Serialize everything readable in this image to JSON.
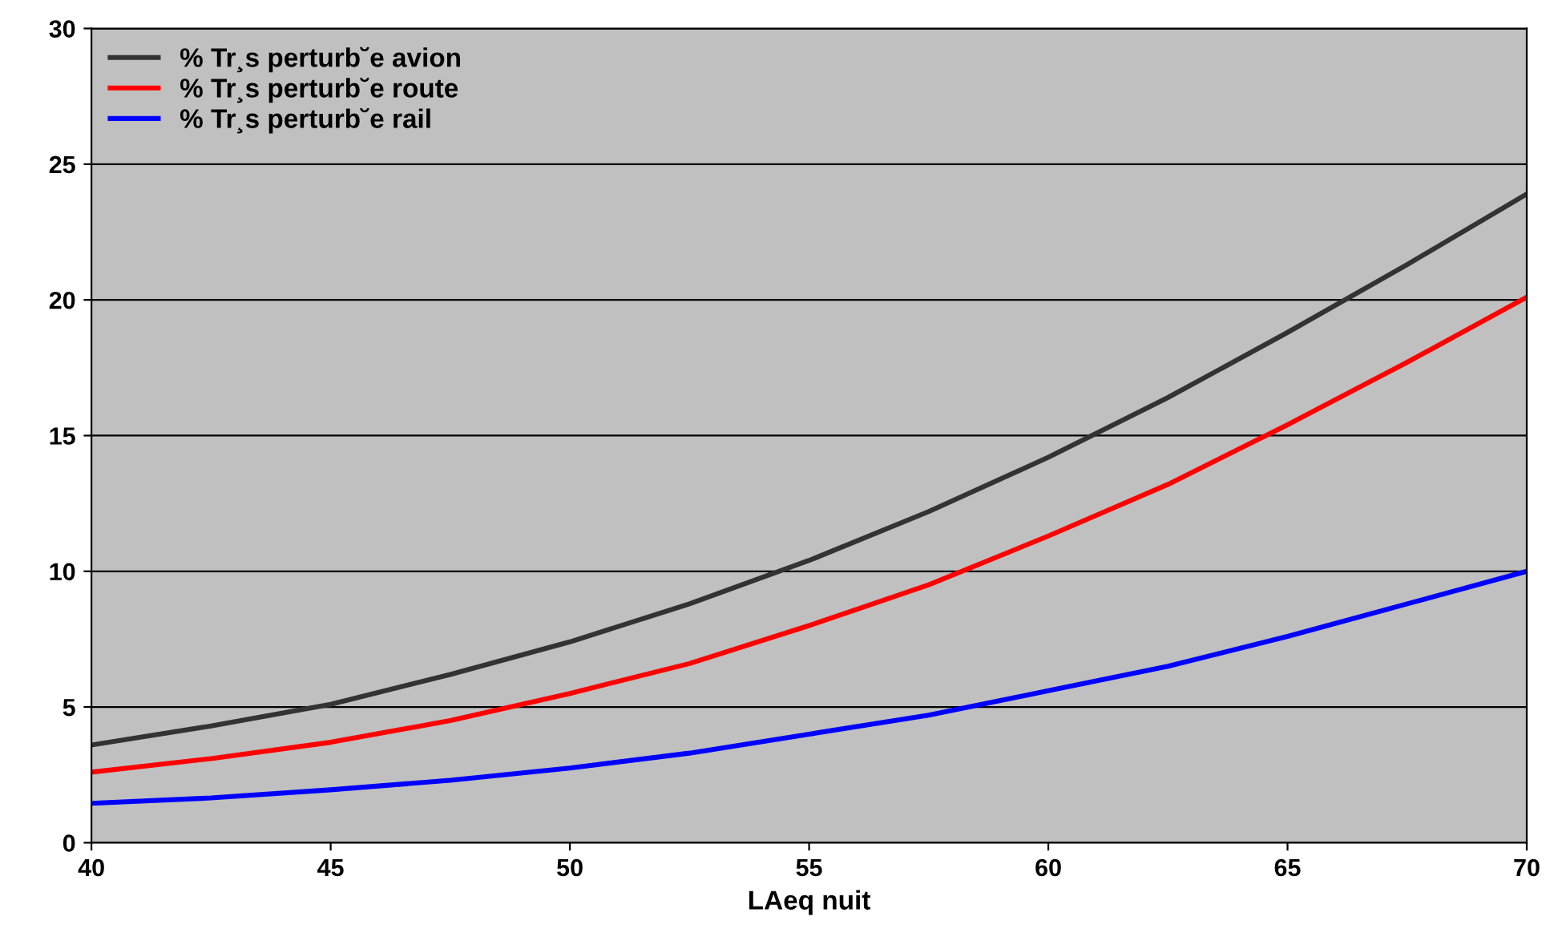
{
  "chart_data": {
    "type": "line",
    "xlabel": "LAeq nuit",
    "x": [
      40,
      42.5,
      45,
      47.5,
      50,
      52.5,
      55,
      57.5,
      60,
      62.5,
      65,
      67.5,
      70
    ],
    "series": [
      {
        "name": "% Tr¸s perturb˘e avion",
        "color": "#333333",
        "values": [
          3.6,
          4.3,
          5.1,
          6.2,
          7.4,
          8.8,
          10.4,
          12.2,
          14.2,
          16.4,
          18.8,
          21.3,
          23.9
        ]
      },
      {
        "name": "% Tr¸s perturb˘e route",
        "color": "#ff0000",
        "values": [
          2.6,
          3.1,
          3.7,
          4.5,
          5.5,
          6.6,
          8.0,
          9.5,
          11.3,
          13.2,
          15.4,
          17.7,
          20.1
        ]
      },
      {
        "name": "% Tr¸s perturb˘e rail",
        "color": "#0000ff",
        "values": [
          1.45,
          1.65,
          1.95,
          2.3,
          2.75,
          3.3,
          4.0,
          4.7,
          5.6,
          6.5,
          7.6,
          8.8,
          10.0
        ]
      }
    ],
    "xlim": [
      40,
      70
    ],
    "xticks": [
      40,
      45,
      50,
      55,
      60,
      65,
      70
    ],
    "ylim": [
      0,
      30
    ],
    "yticks": [
      0,
      5,
      10,
      15,
      20,
      25,
      30
    ],
    "grid": "y",
    "legend": "top left",
    "marker": "none",
    "line_style": "solid"
  }
}
